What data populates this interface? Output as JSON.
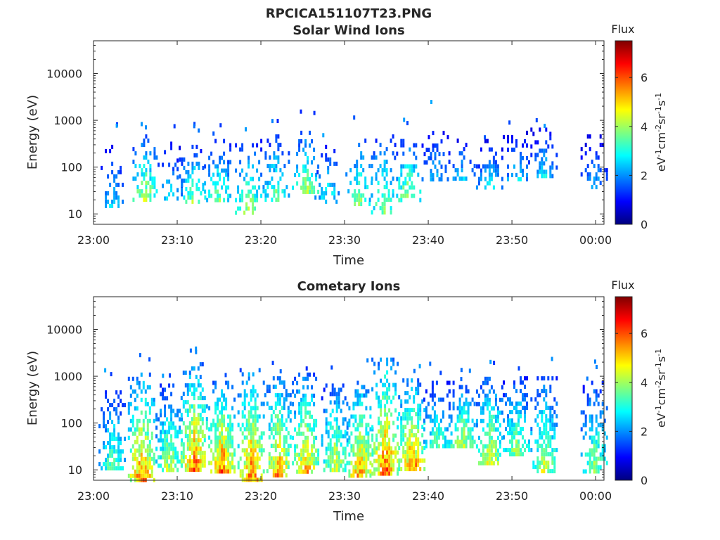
{
  "figure": {
    "title": "RPCICA151107T23.PNG"
  },
  "colormap": {
    "name": "jet",
    "range": [
      0,
      7.5
    ],
    "stops": [
      "#00007f",
      "#0000ff",
      "#007fff",
      "#00ffff",
      "#7fff7f",
      "#ffff00",
      "#ff7f00",
      "#ff0000",
      "#7f0000"
    ]
  },
  "chart_data": [
    {
      "type": "heatmap",
      "title": "Solar Wind Ions",
      "xlabel": "Time",
      "ylabel": "Energy (eV)",
      "x_range": [
        "23:00",
        "00:01"
      ],
      "x_ticks": [
        "23:00",
        "23:10",
        "23:20",
        "23:30",
        "23:40",
        "23:50",
        "00:00"
      ],
      "y_scale": "log",
      "y_range": [
        6,
        50000
      ],
      "y_ticks": [
        10,
        100,
        1000,
        10000
      ],
      "y_tick_labels": [
        "10",
        "100",
        "1000",
        "10000"
      ],
      "colorbar": {
        "title": "Flux",
        "label_prefix": "eV",
        "ticks": [
          0,
          2,
          4,
          6
        ],
        "tick_labels": [
          "0",
          "2",
          "4",
          "6"
        ]
      },
      "bursts": [
        {
          "t": 2.2,
          "emin": 15,
          "emax": 300,
          "peak": 3.2,
          "dense": 0.4
        },
        {
          "t": 6.0,
          "emin": 20,
          "emax": 500,
          "peak": 5.2,
          "dense": 0.45
        },
        {
          "t": 9.0,
          "emin": 20,
          "emax": 350,
          "peak": 3.3,
          "dense": 0.3
        },
        {
          "t": 11.8,
          "emin": 20,
          "emax": 300,
          "peak": 4.6,
          "dense": 0.45
        },
        {
          "t": 14.8,
          "emin": 20,
          "emax": 400,
          "peak": 4.5,
          "dense": 0.45
        },
        {
          "t": 18.5,
          "emin": 10,
          "emax": 400,
          "peak": 5.0,
          "dense": 0.45
        },
        {
          "t": 21.8,
          "emin": 20,
          "emax": 500,
          "peak": 4.5,
          "dense": 0.5
        },
        {
          "t": 25.3,
          "emin": 30,
          "emax": 600,
          "peak": 5.0,
          "dense": 0.5
        },
        {
          "t": 28.0,
          "emin": 20,
          "emax": 300,
          "peak": 3.6,
          "dense": 0.3
        },
        {
          "t": 31.7,
          "emin": 15,
          "emax": 500,
          "peak": 4.6,
          "dense": 0.45
        },
        {
          "t": 34.5,
          "emin": 10,
          "emax": 500,
          "peak": 4.8,
          "dense": 0.5
        },
        {
          "t": 37.5,
          "emin": 20,
          "emax": 400,
          "peak": 5.1,
          "dense": 0.45
        },
        {
          "t": 40.8,
          "emin": 50,
          "emax": 900,
          "peak": 3.0,
          "dense": 0.35
        },
        {
          "t": 44.0,
          "emin": 60,
          "emax": 500,
          "peak": 3.0,
          "dense": 0.35
        },
        {
          "t": 47.3,
          "emin": 40,
          "emax": 400,
          "peak": 3.3,
          "dense": 0.4
        },
        {
          "t": 50.5,
          "emin": 50,
          "emax": 600,
          "peak": 3.3,
          "dense": 0.4
        },
        {
          "t": 53.8,
          "emin": 60,
          "emax": 700,
          "peak": 3.3,
          "dense": 0.45
        },
        {
          "t": 59.8,
          "emin": 40,
          "emax": 500,
          "peak": 2.8,
          "dense": 0.35
        }
      ]
    },
    {
      "type": "heatmap",
      "title": "Cometary Ions",
      "xlabel": "Time",
      "ylabel": "Energy (eV)",
      "x_range": [
        "23:00",
        "00:01"
      ],
      "x_ticks": [
        "23:00",
        "23:10",
        "23:20",
        "23:30",
        "23:40",
        "23:50",
        "00:00"
      ],
      "y_scale": "log",
      "y_range": [
        6,
        50000
      ],
      "y_ticks": [
        10,
        100,
        1000,
        10000
      ],
      "y_tick_labels": [
        "10",
        "100",
        "1000",
        "10000"
      ],
      "colorbar": {
        "title": "Flux",
        "label_prefix": "eV",
        "ticks": [
          0,
          2,
          4,
          6
        ],
        "tick_labels": [
          "0",
          "2",
          "4",
          "6"
        ]
      },
      "bursts": [
        {
          "t": 2.2,
          "emin": 10,
          "emax": 500,
          "peak": 4.5,
          "dense": 0.75
        },
        {
          "t": 5.7,
          "emin": 6,
          "emax": 1200,
          "peak": 7.0,
          "dense": 0.8
        },
        {
          "t": 9.0,
          "emin": 10,
          "emax": 700,
          "peak": 5.2,
          "dense": 0.75
        },
        {
          "t": 12.0,
          "emin": 10,
          "emax": 2000,
          "peak": 7.0,
          "dense": 0.8
        },
        {
          "t": 15.3,
          "emin": 10,
          "emax": 800,
          "peak": 7.0,
          "dense": 0.85
        },
        {
          "t": 18.8,
          "emin": 6,
          "emax": 1500,
          "peak": 7.0,
          "dense": 0.85
        },
        {
          "t": 22.0,
          "emin": 8,
          "emax": 1000,
          "peak": 6.5,
          "dense": 0.8
        },
        {
          "t": 25.3,
          "emin": 10,
          "emax": 1200,
          "peak": 6.3,
          "dense": 0.8
        },
        {
          "t": 28.8,
          "emin": 10,
          "emax": 700,
          "peak": 5.5,
          "dense": 0.75
        },
        {
          "t": 31.8,
          "emin": 8,
          "emax": 800,
          "peak": 6.5,
          "dense": 0.8
        },
        {
          "t": 34.8,
          "emin": 8,
          "emax": 2500,
          "peak": 7.2,
          "dense": 0.85
        },
        {
          "t": 38.0,
          "emin": 10,
          "emax": 900,
          "peak": 7.0,
          "dense": 0.85
        },
        {
          "t": 41.0,
          "emin": 30,
          "emax": 800,
          "peak": 4.5,
          "dense": 0.7
        },
        {
          "t": 44.0,
          "emin": 30,
          "emax": 800,
          "peak": 5.3,
          "dense": 0.75
        },
        {
          "t": 47.3,
          "emin": 15,
          "emax": 1200,
          "peak": 5.5,
          "dense": 0.75
        },
        {
          "t": 50.5,
          "emin": 20,
          "emax": 1000,
          "peak": 5.0,
          "dense": 0.75
        },
        {
          "t": 53.8,
          "emin": 10,
          "emax": 1000,
          "peak": 5.2,
          "dense": 0.75
        },
        {
          "t": 59.8,
          "emin": 10,
          "emax": 800,
          "peak": 4.8,
          "dense": 0.7
        }
      ]
    }
  ]
}
